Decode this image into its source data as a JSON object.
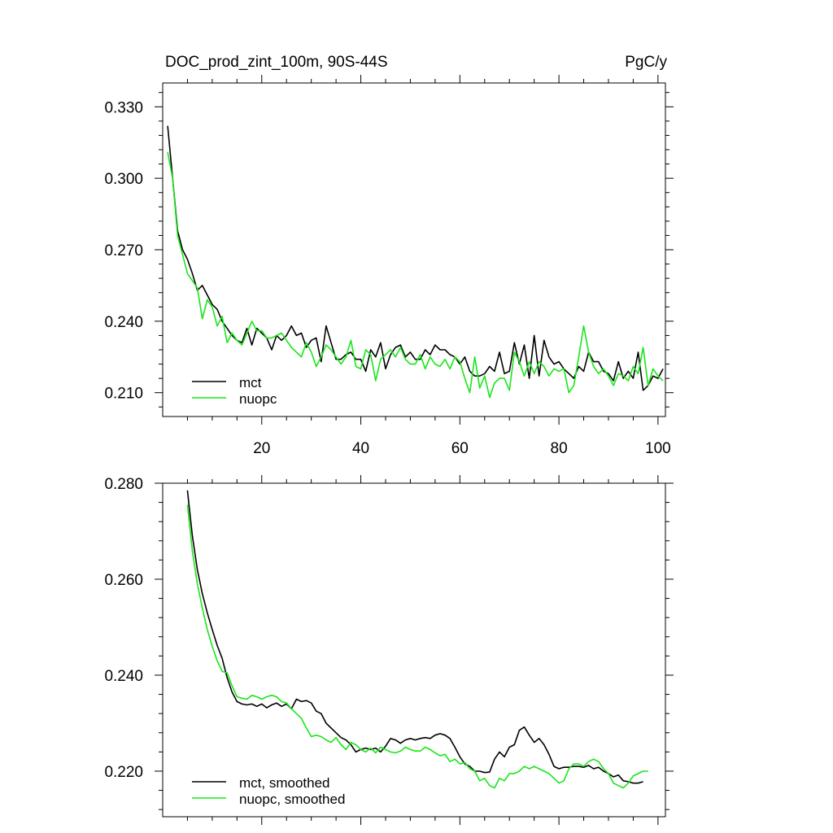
{
  "chart_data": [
    {
      "type": "line",
      "title": "DOC_prod_zint_100m, 90S-44S",
      "units": "PgC/y",
      "xlim": [
        0,
        101.5
      ],
      "ylim": [
        0.2,
        0.34
      ],
      "xticks": [
        20,
        40,
        60,
        80,
        100
      ],
      "xtick_labels": [
        "20",
        "40",
        "60",
        "80",
        "100"
      ],
      "yticks": [
        0.21,
        0.24,
        0.27,
        0.3,
        0.33
      ],
      "ytick_labels": [
        "0.210",
        "0.240",
        "0.270",
        "0.300",
        "0.330"
      ],
      "legend_position": "bottom-left",
      "x_start": 1,
      "series": [
        {
          "name": "mct",
          "color": "#000000",
          "values": [
            0.322,
            0.3,
            0.278,
            0.27,
            0.266,
            0.26,
            0.253,
            0.255,
            0.251,
            0.247,
            0.245,
            0.24,
            0.237,
            0.234,
            0.232,
            0.231,
            0.237,
            0.23,
            0.237,
            0.235,
            0.233,
            0.228,
            0.234,
            0.232,
            0.234,
            0.238,
            0.234,
            0.235,
            0.229,
            0.232,
            0.233,
            0.223,
            0.238,
            0.231,
            0.224,
            0.224,
            0.226,
            0.227,
            0.224,
            0.224,
            0.219,
            0.228,
            0.225,
            0.231,
            0.22,
            0.226,
            0.229,
            0.23,
            0.225,
            0.227,
            0.224,
            0.224,
            0.228,
            0.226,
            0.23,
            0.228,
            0.228,
            0.226,
            0.225,
            0.222,
            0.225,
            0.219,
            0.217,
            0.217,
            0.218,
            0.221,
            0.219,
            0.227,
            0.218,
            0.219,
            0.231,
            0.222,
            0.23,
            0.216,
            0.234,
            0.217,
            0.232,
            0.225,
            0.222,
            0.223,
            0.22,
            0.218,
            0.216,
            0.221,
            0.219,
            0.227,
            0.223,
            0.223,
            0.219,
            0.218,
            0.215,
            0.223,
            0.216,
            0.219,
            0.216,
            0.227,
            0.211,
            0.213,
            0.217,
            0.216,
            0.22
          ]
        },
        {
          "name": "nuopc",
          "color": "#19e619",
          "values": [
            0.311,
            0.3,
            0.276,
            0.268,
            0.26,
            0.257,
            0.254,
            0.241,
            0.249,
            0.246,
            0.238,
            0.242,
            0.231,
            0.235,
            0.232,
            0.23,
            0.235,
            0.24,
            0.236,
            0.236,
            0.233,
            0.233,
            0.234,
            0.235,
            0.232,
            0.229,
            0.227,
            0.225,
            0.231,
            0.227,
            0.221,
            0.225,
            0.23,
            0.228,
            0.225,
            0.222,
            0.225,
            0.232,
            0.221,
            0.22,
            0.228,
            0.226,
            0.215,
            0.224,
            0.226,
            0.228,
            0.225,
            0.229,
            0.224,
            0.222,
            0.222,
            0.226,
            0.22,
            0.225,
            0.222,
            0.221,
            0.224,
            0.22,
            0.225,
            0.223,
            0.216,
            0.21,
            0.225,
            0.212,
            0.217,
            0.208,
            0.214,
            0.216,
            0.216,
            0.211,
            0.227,
            0.223,
            0.217,
            0.223,
            0.218,
            0.223,
            0.221,
            0.217,
            0.22,
            0.219,
            0.22,
            0.21,
            0.213,
            0.225,
            0.238,
            0.227,
            0.221,
            0.218,
            0.22,
            0.217,
            0.213,
            0.218,
            0.217,
            0.215,
            0.221,
            0.218,
            0.229,
            0.213,
            0.22,
            0.217,
            0.215
          ]
        }
      ]
    },
    {
      "type": "line",
      "xlim": [
        0,
        101.5
      ],
      "ylim": [
        0.2105,
        0.28
      ],
      "xticks": [
        20,
        40,
        60,
        80,
        100
      ],
      "yticks": [
        0.22,
        0.24,
        0.26,
        0.28
      ],
      "ytick_labels": [
        "0.220",
        "0.240",
        "0.260",
        "0.280"
      ],
      "legend_position": "bottom-left",
      "x_start": 5,
      "series": [
        {
          "name": "mct, smoothed",
          "color": "#000000",
          "values": [
            0.2785,
            0.269,
            0.262,
            0.257,
            0.253,
            0.2495,
            0.2462,
            0.2435,
            0.2395,
            0.2365,
            0.2345,
            0.234,
            0.2338,
            0.234,
            0.2335,
            0.234,
            0.2332,
            0.2338,
            0.2342,
            0.2335,
            0.234,
            0.233,
            0.235,
            0.2345,
            0.2347,
            0.2342,
            0.2325,
            0.232,
            0.23,
            0.229,
            0.228,
            0.227,
            0.2265,
            0.2255,
            0.224,
            0.2245,
            0.2248,
            0.2245,
            0.2248,
            0.224,
            0.2252,
            0.2268,
            0.2265,
            0.2258,
            0.2265,
            0.2268,
            0.2265,
            0.2268,
            0.227,
            0.2268,
            0.2275,
            0.2278,
            0.2275,
            0.2268,
            0.225,
            0.223,
            0.2215,
            0.221,
            0.22,
            0.22,
            0.2197,
            0.2198,
            0.2225,
            0.224,
            0.223,
            0.225,
            0.2255,
            0.2285,
            0.2292,
            0.2275,
            0.226,
            0.2268,
            0.2255,
            0.2235,
            0.221,
            0.2205,
            0.2208,
            0.2208,
            0.221,
            0.221,
            0.2208,
            0.2212,
            0.2205,
            0.2208,
            0.22,
            0.2195,
            0.2188,
            0.2192,
            0.218,
            0.2178,
            0.2175,
            0.2175,
            0.2178
          ]
        },
        {
          "name": "nuopc, smoothed",
          "color": "#19e619",
          "values": [
            0.2755,
            0.2658,
            0.259,
            0.254,
            0.2495,
            0.246,
            0.243,
            0.2408,
            0.2405,
            0.2378,
            0.2355,
            0.2352,
            0.235,
            0.2358,
            0.2355,
            0.235,
            0.2355,
            0.2358,
            0.2355,
            0.2345,
            0.2342,
            0.233,
            0.232,
            0.231,
            0.229,
            0.2272,
            0.2275,
            0.2272,
            0.2265,
            0.226,
            0.227,
            0.2255,
            0.2245,
            0.226,
            0.2255,
            0.2245,
            0.224,
            0.2248,
            0.2238,
            0.225,
            0.2245,
            0.224,
            0.2238,
            0.2242,
            0.225,
            0.2245,
            0.2242,
            0.2242,
            0.225,
            0.2245,
            0.2238,
            0.2232,
            0.2235,
            0.222,
            0.2225,
            0.2215,
            0.2218,
            0.2205,
            0.22,
            0.218,
            0.2185,
            0.217,
            0.2165,
            0.2185,
            0.218,
            0.2195,
            0.2195,
            0.22,
            0.221,
            0.2205,
            0.221,
            0.2205,
            0.22,
            0.2195,
            0.2185,
            0.2175,
            0.218,
            0.2205,
            0.2215,
            0.2215,
            0.221,
            0.222,
            0.2225,
            0.222,
            0.2205,
            0.2195,
            0.2175,
            0.217,
            0.2165,
            0.2175,
            0.219,
            0.2195,
            0.22,
            0.22
          ]
        }
      ]
    }
  ]
}
